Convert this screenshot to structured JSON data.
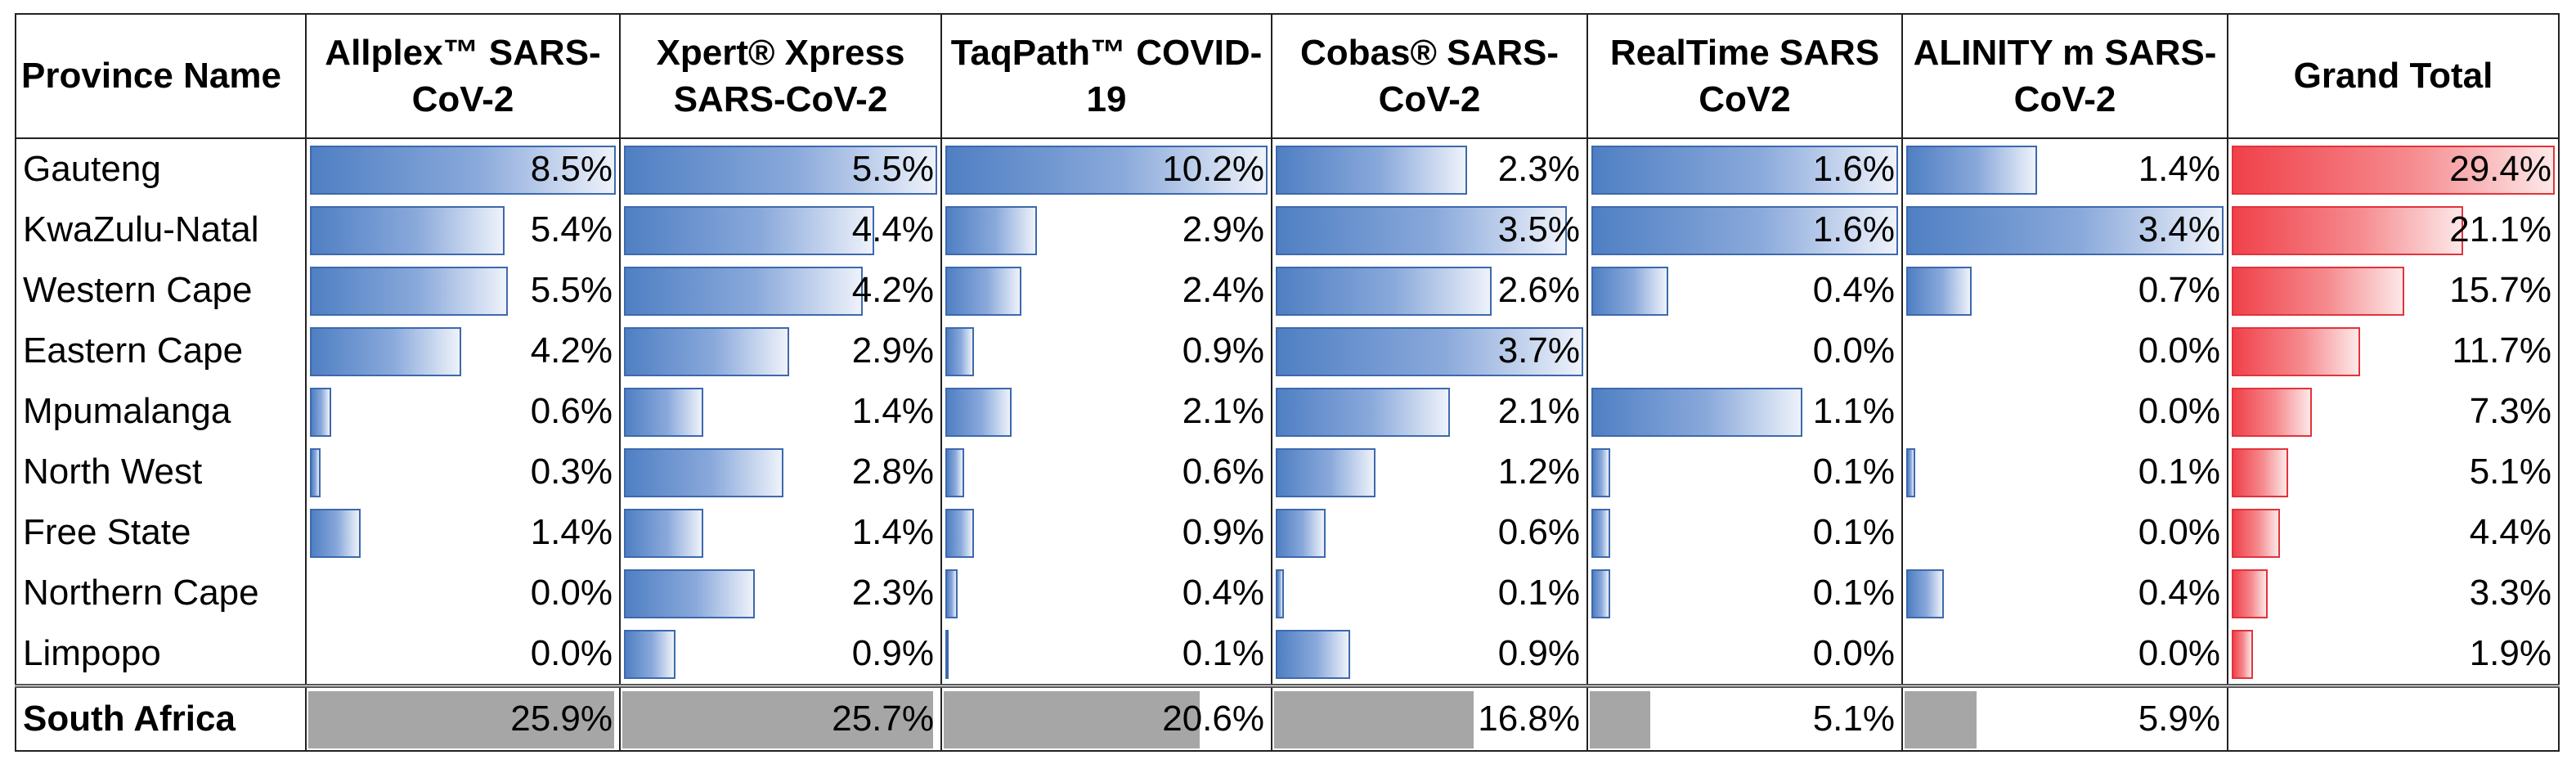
{
  "chart_data": {
    "type": "table",
    "unit": "%",
    "columns": [
      "Province Name",
      "Allplex™ SARS-CoV-2",
      "Xpert® Xpress SARS-CoV-2",
      "TaqPath™ COVID-19",
      "Cobas® SARS-CoV-2",
      "RealTime SARS CoV2",
      "ALINITY m SARS-CoV-2",
      "Grand Total"
    ],
    "rows": [
      {
        "name": "Gauteng",
        "values": [
          8.5,
          5.5,
          10.2,
          2.3,
          1.6,
          1.4,
          29.4
        ]
      },
      {
        "name": "KwaZulu-Natal",
        "values": [
          5.4,
          4.4,
          2.9,
          3.5,
          1.6,
          3.4,
          21.1
        ]
      },
      {
        "name": "Western Cape",
        "values": [
          5.5,
          4.2,
          2.4,
          2.6,
          0.4,
          0.7,
          15.7
        ]
      },
      {
        "name": "Eastern Cape",
        "values": [
          4.2,
          2.9,
          0.9,
          3.7,
          0.0,
          0.0,
          11.7
        ]
      },
      {
        "name": "Mpumalanga",
        "values": [
          0.6,
          1.4,
          2.1,
          2.1,
          1.1,
          0.0,
          7.3
        ]
      },
      {
        "name": "North West",
        "values": [
          0.3,
          2.8,
          0.6,
          1.2,
          0.1,
          0.1,
          5.1
        ]
      },
      {
        "name": "Free State",
        "values": [
          1.4,
          1.4,
          0.9,
          0.6,
          0.1,
          0.0,
          4.4
        ]
      },
      {
        "name": "Northern Cape",
        "values": [
          0.0,
          2.3,
          0.4,
          0.1,
          0.1,
          0.4,
          3.3
        ]
      },
      {
        "name": "Limpopo",
        "values": [
          0.0,
          0.9,
          0.1,
          0.9,
          0.0,
          0.0,
          1.9
        ]
      }
    ],
    "total_row": {
      "name": "South Africa",
      "values": [
        25.9,
        25.7,
        20.6,
        16.8,
        5.1,
        5.9
      ]
    },
    "colors": {
      "bar": "#5b8bd0",
      "total_bar": "#f0414a",
      "summary_bar": "#a6a6a6"
    }
  }
}
